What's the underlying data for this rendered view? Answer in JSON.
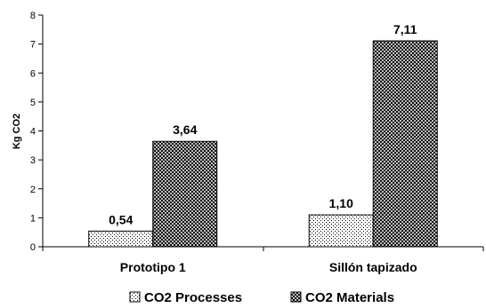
{
  "chart_data": {
    "type": "bar",
    "categories": [
      "Prototipo 1",
      "Sillón tapizado"
    ],
    "series": [
      {
        "name": "CO2 Processes",
        "values": [
          0.54,
          1.1
        ],
        "labels": [
          "0,54",
          "1,10"
        ],
        "pattern": "dots"
      },
      {
        "name": "CO2 Materials",
        "values": [
          3.64,
          7.11
        ],
        "labels": [
          "3,64",
          "7,11"
        ],
        "pattern": "crosshatch"
      }
    ],
    "ylabel": "Kg CO2",
    "xlabel": "",
    "ylim": [
      0,
      8
    ],
    "yticks": [
      "0",
      "1",
      "2",
      "3",
      "4",
      "5",
      "6",
      "7",
      "8"
    ],
    "legend_position": "bottom",
    "grid": false
  }
}
